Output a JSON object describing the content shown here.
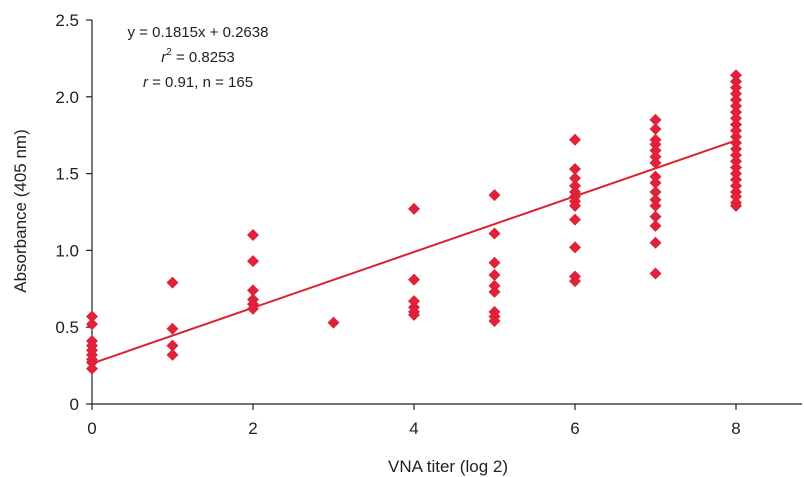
{
  "chart_data": {
    "type": "scatter",
    "xlabel": "VNA titer (log 2)",
    "ylabel": "Absorbance (405 nm)",
    "xlim": [
      0,
      8.8
    ],
    "ylim": [
      0,
      2.5
    ],
    "xticks": [
      0,
      2,
      4,
      6,
      8
    ],
    "xtick_labels": [
      "0",
      "2",
      "4",
      "6",
      "8"
    ],
    "yticks": [
      0,
      0.5,
      1.0,
      1.5,
      2.0,
      2.5
    ],
    "ytick_labels": [
      "0",
      "0.5",
      "1.0",
      "1.5",
      "2.0",
      "2.5"
    ],
    "grid": false,
    "marker_color": "#e0213a",
    "line_color": "#d9232f",
    "annotations": {
      "equation": "y = 0.1815x + 0.2638",
      "r2_symbol": "r",
      "r2_sup": "2",
      "r2_value": " = 0.8253",
      "r_symbol": "r",
      "r_value": " = 0.91, n = 165"
    },
    "regression": {
      "slope": 0.1815,
      "intercept": 0.2638
    },
    "points": [
      {
        "x": 0,
        "y": 0.57
      },
      {
        "x": 0,
        "y": 0.52
      },
      {
        "x": 0,
        "y": 0.41
      },
      {
        "x": 0,
        "y": 0.38
      },
      {
        "x": 0,
        "y": 0.35
      },
      {
        "x": 0,
        "y": 0.32
      },
      {
        "x": 0,
        "y": 0.29
      },
      {
        "x": 0,
        "y": 0.27
      },
      {
        "x": 0,
        "y": 0.23
      },
      {
        "x": 1,
        "y": 0.79
      },
      {
        "x": 1,
        "y": 0.49
      },
      {
        "x": 1,
        "y": 0.38
      },
      {
        "x": 1,
        "y": 0.32
      },
      {
        "x": 2,
        "y": 1.1
      },
      {
        "x": 2,
        "y": 0.93
      },
      {
        "x": 2,
        "y": 0.74
      },
      {
        "x": 2,
        "y": 0.68
      },
      {
        "x": 2,
        "y": 0.65
      },
      {
        "x": 2,
        "y": 0.62
      },
      {
        "x": 3,
        "y": 0.53
      },
      {
        "x": 4,
        "y": 1.27
      },
      {
        "x": 4,
        "y": 0.81
      },
      {
        "x": 4,
        "y": 0.67
      },
      {
        "x": 4,
        "y": 0.63
      },
      {
        "x": 4,
        "y": 0.6
      },
      {
        "x": 4,
        "y": 0.58
      },
      {
        "x": 5,
        "y": 1.36
      },
      {
        "x": 5,
        "y": 1.11
      },
      {
        "x": 5,
        "y": 0.92
      },
      {
        "x": 5,
        "y": 0.84
      },
      {
        "x": 5,
        "y": 0.77
      },
      {
        "x": 5,
        "y": 0.73
      },
      {
        "x": 5,
        "y": 0.6
      },
      {
        "x": 5,
        "y": 0.57
      },
      {
        "x": 5,
        "y": 0.54
      },
      {
        "x": 6,
        "y": 1.72
      },
      {
        "x": 6,
        "y": 1.53
      },
      {
        "x": 6,
        "y": 1.47
      },
      {
        "x": 6,
        "y": 1.42
      },
      {
        "x": 6,
        "y": 1.38
      },
      {
        "x": 6,
        "y": 1.35
      },
      {
        "x": 6,
        "y": 1.32
      },
      {
        "x": 6,
        "y": 1.29
      },
      {
        "x": 6,
        "y": 1.2
      },
      {
        "x": 6,
        "y": 1.02
      },
      {
        "x": 6,
        "y": 0.83
      },
      {
        "x": 6,
        "y": 0.8
      },
      {
        "x": 7,
        "y": 1.85
      },
      {
        "x": 7,
        "y": 1.79
      },
      {
        "x": 7,
        "y": 1.72
      },
      {
        "x": 7,
        "y": 1.69
      },
      {
        "x": 7,
        "y": 1.65
      },
      {
        "x": 7,
        "y": 1.61
      },
      {
        "x": 7,
        "y": 1.57
      },
      {
        "x": 7,
        "y": 1.48
      },
      {
        "x": 7,
        "y": 1.44
      },
      {
        "x": 7,
        "y": 1.38
      },
      {
        "x": 7,
        "y": 1.33
      },
      {
        "x": 7,
        "y": 1.29
      },
      {
        "x": 7,
        "y": 1.22
      },
      {
        "x": 7,
        "y": 1.16
      },
      {
        "x": 7,
        "y": 1.05
      },
      {
        "x": 7,
        "y": 0.85
      },
      {
        "x": 8,
        "y": 2.14
      },
      {
        "x": 8,
        "y": 2.1
      },
      {
        "x": 8,
        "y": 2.06
      },
      {
        "x": 8,
        "y": 2.02
      },
      {
        "x": 8,
        "y": 1.98
      },
      {
        "x": 8,
        "y": 1.94
      },
      {
        "x": 8,
        "y": 1.9
      },
      {
        "x": 8,
        "y": 1.86
      },
      {
        "x": 8,
        "y": 1.82
      },
      {
        "x": 8,
        "y": 1.78
      },
      {
        "x": 8,
        "y": 1.74
      },
      {
        "x": 8,
        "y": 1.7
      },
      {
        "x": 8,
        "y": 1.66
      },
      {
        "x": 8,
        "y": 1.62
      },
      {
        "x": 8,
        "y": 1.58
      },
      {
        "x": 8,
        "y": 1.54
      },
      {
        "x": 8,
        "y": 1.5
      },
      {
        "x": 8,
        "y": 1.46
      },
      {
        "x": 8,
        "y": 1.42
      },
      {
        "x": 8,
        "y": 1.38
      },
      {
        "x": 8,
        "y": 1.35
      },
      {
        "x": 8,
        "y": 1.31
      },
      {
        "x": 8,
        "y": 1.29
      }
    ]
  }
}
